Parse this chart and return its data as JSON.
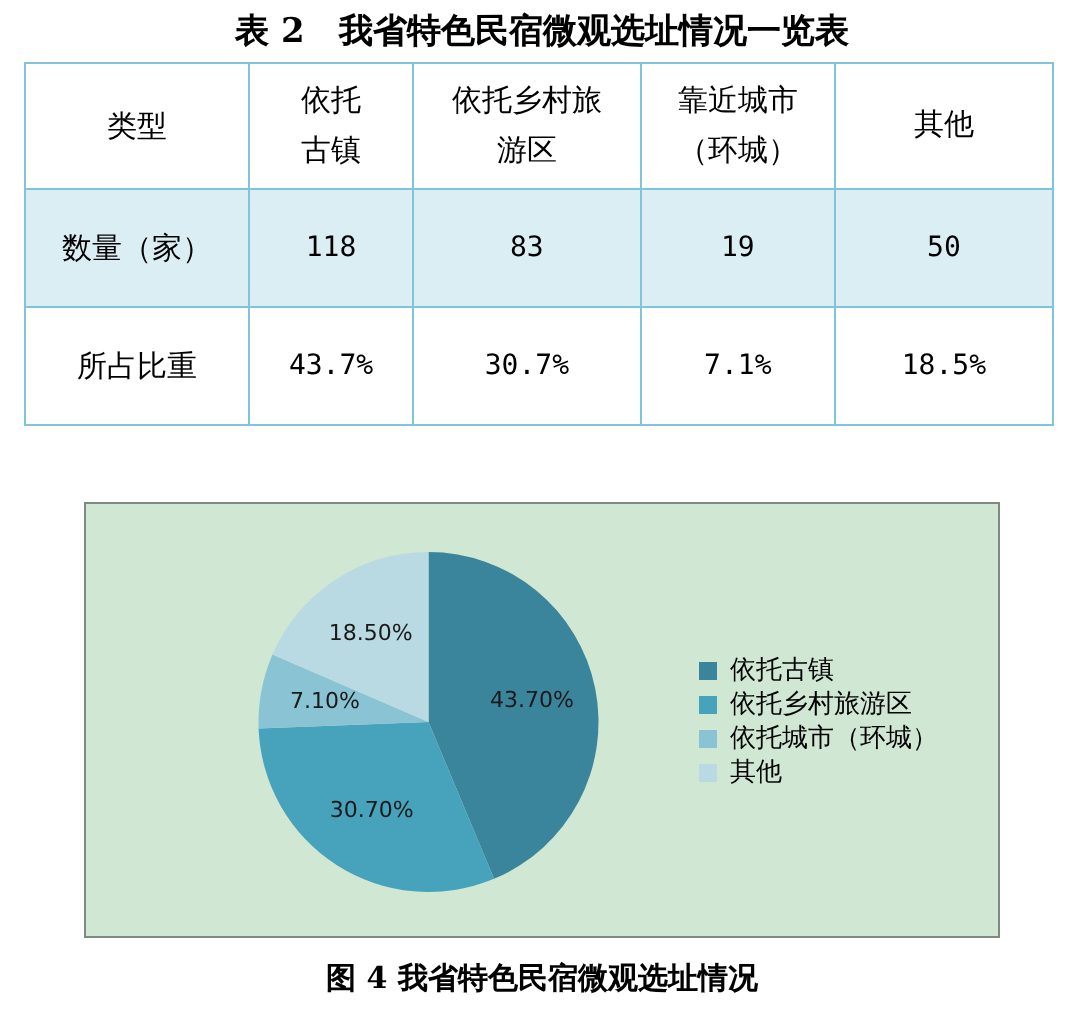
{
  "chart_data": [
    {
      "type": "other",
      "title": "表 2　我省特色民宿微观选址情况一览表",
      "legend_title": "类型",
      "categories": [
        "依托古镇",
        "依托乡村旅游区",
        "靠近城市（环城）",
        "其他"
      ],
      "data_labels": true,
      "series": [
        {
          "name": "数量（家）",
          "values": [
            118,
            83,
            19,
            50
          ]
        },
        {
          "name": "所占比重",
          "values": [
            43.7,
            30.7,
            7.1,
            18.5
          ],
          "value_labels": [
            "43.7%",
            "30.7%",
            "7.1%",
            "18.5%"
          ]
        }
      ]
    },
    {
      "type": "pie",
      "title": "图 4  我省特色民宿微观选址情况",
      "categories": [
        "依托古镇",
        "依托乡村旅游区",
        "依托城市（环城）",
        "其他"
      ],
      "values": [
        43.7,
        30.7,
        7.1,
        18.5
      ],
      "value_labels": [
        "43.70%",
        "30.70%",
        "7.10%",
        "18.50%"
      ],
      "colors": [
        "#3a859b",
        "#47a2bc",
        "#8ac3d3",
        "#b9d9e3"
      ],
      "legend": "right"
    }
  ]
}
